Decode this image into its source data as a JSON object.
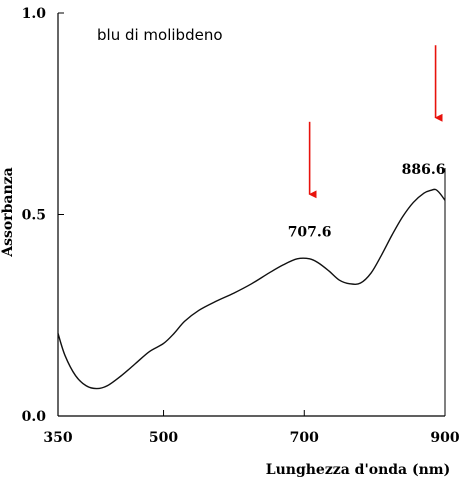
{
  "chart_data": {
    "type": "line",
    "xlabel": "Lunghezza d'onda (nm)",
    "ylabel": "Assorbanza",
    "xlim": [
      350,
      900
    ],
    "ylim": [
      0.0,
      1.0
    ],
    "x_ticks": [
      350,
      500,
      700,
      900
    ],
    "y_ticks": [
      0.0,
      0.5,
      1.0
    ],
    "y_tick_labels": [
      "0.0",
      "0.5",
      "1.0"
    ],
    "grid": false,
    "annotation": "blu di molibdeno",
    "peaks": [
      {
        "label": "707.6",
        "x": 707.6,
        "y": 0.39
      },
      {
        "label": "886.6",
        "x": 886.6,
        "y": 0.56
      }
    ],
    "arrow_color": "#e8120c",
    "series": [
      {
        "color": "#111111",
        "x": [
          350,
          360,
          375,
          390,
          405,
          420,
          440,
          460,
          480,
          500,
          515,
          530,
          550,
          575,
          600,
          625,
          650,
          670,
          690,
          707.6,
          720,
          735,
          750,
          765,
          780,
          795,
          810,
          825,
          840,
          855,
          870,
          880,
          886.6,
          893,
          900
        ],
        "y": [
          0.205,
          0.15,
          0.1,
          0.075,
          0.068,
          0.075,
          0.1,
          0.13,
          0.16,
          0.18,
          0.205,
          0.235,
          0.262,
          0.285,
          0.305,
          0.328,
          0.355,
          0.375,
          0.39,
          0.39,
          0.38,
          0.36,
          0.337,
          0.328,
          0.33,
          0.355,
          0.4,
          0.45,
          0.495,
          0.53,
          0.553,
          0.56,
          0.562,
          0.552,
          0.535
        ]
      }
    ]
  }
}
